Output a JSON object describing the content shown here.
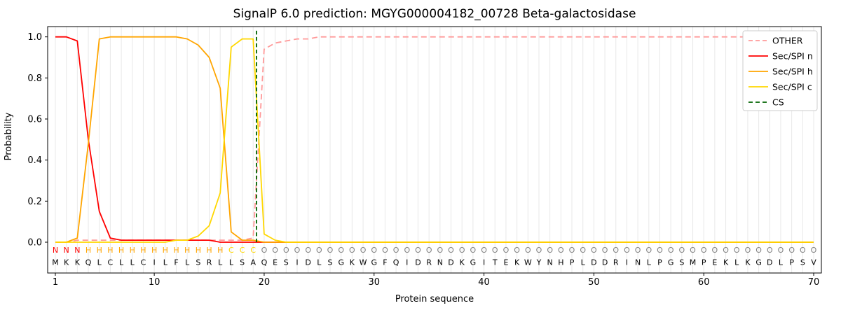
{
  "chart_data": {
    "type": "line",
    "title": "SignalP 6.0 prediction: MGYG000004182_00728 Beta-galactosidase",
    "xlabel": "Protein sequence",
    "ylabel": "Probability",
    "xlim": [
      0.3,
      70.7
    ],
    "ylim": [
      -0.15,
      1.05
    ],
    "xticks": [
      1,
      10,
      20,
      30,
      40,
      50,
      60,
      70
    ],
    "yticks": [
      "0.0",
      "0.2",
      "0.4",
      "0.6",
      "0.8",
      "1.0"
    ],
    "grid": {
      "vertical_per_residue": true,
      "color": "#e8e8e8"
    },
    "legend_position": "upper right",
    "sequence": "MKKQLCLLCILFLSRLLSAQESIDLSGKWGFQIDRNDKGITEKWYNHPLDDRINLPGSMPEKLKGDLPSV",
    "regions": [
      {
        "letter": "N",
        "start": 1,
        "end": 3
      },
      {
        "letter": "H",
        "start": 4,
        "end": 16
      },
      {
        "letter": "C",
        "start": 17,
        "end": 19
      },
      {
        "letter": "O",
        "start": 20,
        "end": 70
      }
    ],
    "region_colors": {
      "N": "#ff0000",
      "H": "#ffa500",
      "C": "#ffd700",
      "O": "#7f7f7f"
    },
    "cs_line": {
      "label": "CS",
      "x": 19.3,
      "color": "#006400",
      "style": "dashed"
    },
    "series": [
      {
        "name": "OTHER",
        "color": "#ff9999",
        "style": "dashed",
        "values": [
          0.0,
          0.0,
          0.01,
          0.01,
          0.01,
          0.01,
          0.01,
          0.01,
          0.01,
          0.01,
          0.01,
          0.01,
          0.01,
          0.01,
          0.01,
          0.01,
          0.01,
          0.01,
          0.02,
          0.94,
          0.97,
          0.98,
          0.99,
          0.99,
          1.0,
          1.0,
          1.0,
          1.0,
          1.0,
          1.0,
          1.0,
          1.0,
          1.0,
          1.0,
          1.0,
          1.0,
          1.0,
          1.0,
          1.0,
          1.0,
          1.0,
          1.0,
          1.0,
          1.0,
          1.0,
          1.0,
          1.0,
          1.0,
          1.0,
          1.0,
          1.0,
          1.0,
          1.0,
          1.0,
          1.0,
          1.0,
          1.0,
          1.0,
          1.0,
          1.0,
          1.0,
          1.0,
          1.0,
          1.0,
          1.0,
          1.0,
          1.0,
          1.0,
          1.0,
          1.0
        ]
      },
      {
        "name": "Sec/SPI n",
        "color": "#ff0000",
        "style": "solid",
        "values": [
          1.0,
          1.0,
          0.98,
          0.5,
          0.15,
          0.02,
          0.01,
          0.01,
          0.01,
          0.01,
          0.01,
          0.01,
          0.01,
          0.01,
          0.01,
          0.0,
          0.0,
          0.0,
          0.0,
          0.0,
          0.0,
          0.0,
          0.0,
          0.0,
          0.0,
          0.0,
          0.0,
          0.0,
          0.0,
          0.0,
          0.0,
          0.0,
          0.0,
          0.0,
          0.0,
          0.0,
          0.0,
          0.0,
          0.0,
          0.0,
          0.0,
          0.0,
          0.0,
          0.0,
          0.0,
          0.0,
          0.0,
          0.0,
          0.0,
          0.0,
          0.0,
          0.0,
          0.0,
          0.0,
          0.0,
          0.0,
          0.0,
          0.0,
          0.0,
          0.0,
          0.0,
          0.0,
          0.0,
          0.0,
          0.0,
          0.0,
          0.0,
          0.0,
          0.0,
          0.0
        ]
      },
      {
        "name": "Sec/SPI h",
        "color": "#ffa500",
        "style": "solid",
        "values": [
          0.0,
          0.0,
          0.02,
          0.48,
          0.99,
          1.0,
          1.0,
          1.0,
          1.0,
          1.0,
          1.0,
          1.0,
          0.99,
          0.96,
          0.9,
          0.75,
          0.05,
          0.01,
          0.01,
          0.0,
          0.0,
          0.0,
          0.0,
          0.0,
          0.0,
          0.0,
          0.0,
          0.0,
          0.0,
          0.0,
          0.0,
          0.0,
          0.0,
          0.0,
          0.0,
          0.0,
          0.0,
          0.0,
          0.0,
          0.0,
          0.0,
          0.0,
          0.0,
          0.0,
          0.0,
          0.0,
          0.0,
          0.0,
          0.0,
          0.0,
          0.0,
          0.0,
          0.0,
          0.0,
          0.0,
          0.0,
          0.0,
          0.0,
          0.0,
          0.0,
          0.0,
          0.0,
          0.0,
          0.0,
          0.0,
          0.0,
          0.0,
          0.0,
          0.0,
          0.0
        ]
      },
      {
        "name": "Sec/SPI c",
        "color": "#ffd700",
        "style": "solid",
        "values": [
          0.0,
          0.0,
          0.0,
          0.0,
          0.0,
          0.0,
          0.0,
          0.0,
          0.0,
          0.0,
          0.0,
          0.01,
          0.01,
          0.03,
          0.08,
          0.24,
          0.95,
          0.99,
          0.99,
          0.04,
          0.01,
          0.0,
          0.0,
          0.0,
          0.0,
          0.0,
          0.0,
          0.0,
          0.0,
          0.0,
          0.0,
          0.0,
          0.0,
          0.0,
          0.0,
          0.0,
          0.0,
          0.0,
          0.0,
          0.0,
          0.0,
          0.0,
          0.0,
          0.0,
          0.0,
          0.0,
          0.0,
          0.0,
          0.0,
          0.0,
          0.0,
          0.0,
          0.0,
          0.0,
          0.0,
          0.0,
          0.0,
          0.0,
          0.0,
          0.0,
          0.0,
          0.0,
          0.0,
          0.0,
          0.0,
          0.0,
          0.0,
          0.0,
          0.0,
          0.0
        ]
      }
    ]
  }
}
